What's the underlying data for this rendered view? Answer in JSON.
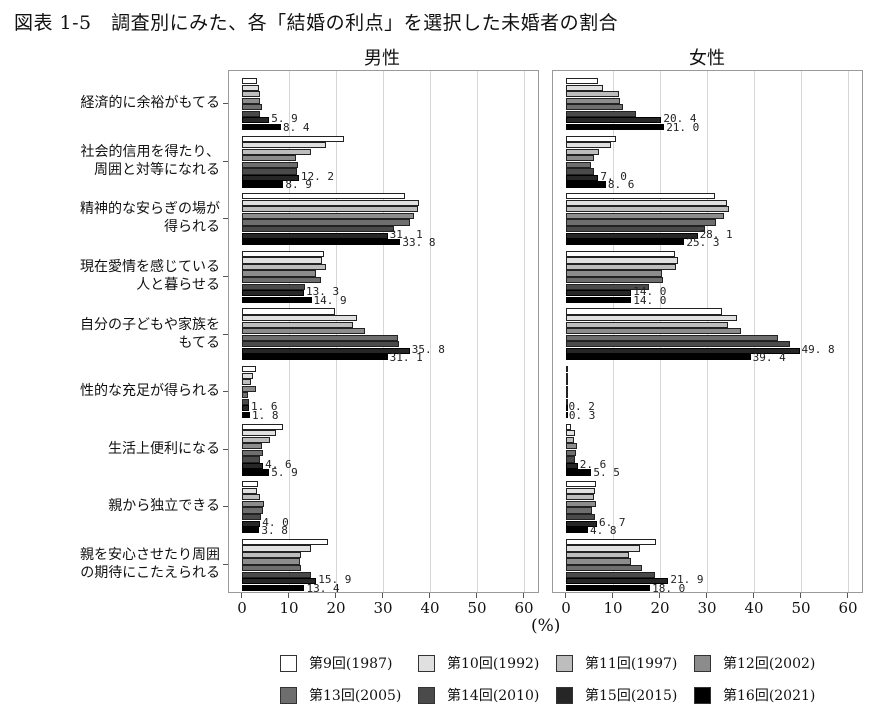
{
  "title": "図表 1-5　調査別にみた、各「結婚の利点」を選択した未婚者の割合",
  "panels": [
    {
      "label": "男性"
    },
    {
      "label": "女性"
    }
  ],
  "x_axis": {
    "unit_label": "(%)",
    "ticks": [
      "0",
      "10",
      "20",
      "30",
      "40",
      "50",
      "60"
    ]
  },
  "legend": [
    {
      "label": "第9回(1987)",
      "color": "#ffffff"
    },
    {
      "label": "第10回(1992)",
      "color": "#e0e0e0"
    },
    {
      "label": "第11回(1997)",
      "color": "#bdbdbd"
    },
    {
      "label": "第12回(2002)",
      "color": "#8c8c8c"
    },
    {
      "label": "第13回(2005)",
      "color": "#6e6e6e"
    },
    {
      "label": "第14回(2010)",
      "color": "#4a4a4a"
    },
    {
      "label": "第15回(2015)",
      "color": "#262626"
    },
    {
      "label": "第16回(2021)",
      "color": "#000000"
    }
  ],
  "categories": [
    {
      "line1": "経済的に余裕がもてる",
      "line2": ""
    },
    {
      "line1": "社会的信用を得たり、",
      "line2": "周囲と対等になれる"
    },
    {
      "line1": "精神的な安らぎの場が",
      "line2": "得られる"
    },
    {
      "line1": "現在愛情を感じている",
      "line2": "人と暮らせる"
    },
    {
      "line1": "自分の子どもや家族を",
      "line2": "もてる"
    },
    {
      "line1": "性的な充足が得られる",
      "line2": ""
    },
    {
      "line1": "生活上便利になる",
      "line2": ""
    },
    {
      "line1": "親から独立できる",
      "line2": ""
    },
    {
      "line1": "親を安心させたり周囲",
      "line2": "の期待にこたえられる"
    }
  ],
  "chart_data": [
    {
      "type": "bar",
      "orientation": "horizontal",
      "title": "男性",
      "xlabel": "(%)",
      "xlim": [
        0,
        60
      ],
      "grid": true,
      "legend_position": "bottom",
      "categories": [
        "経済的に余裕がもてる",
        "社会的信用を得たり、周囲と対等になれる",
        "精神的な安らぎの場が得られる",
        "現在愛情を感じている人と暮らせる",
        "自分の子どもや家族をもてる",
        "性的な充足が得られる",
        "生活上便利になる",
        "親から独立できる",
        "親を安心させたり周囲の期待にこたえられる"
      ],
      "series": [
        {
          "name": "第9回(1987)",
          "values": [
            3.2,
            21.9,
            34.7,
            17.5,
            19.8,
            3.1,
            8.9,
            3.5,
            18.4
          ]
        },
        {
          "name": "第10回(1992)",
          "values": [
            3.7,
            17.9,
            37.7,
            17.2,
            24.6,
            2.5,
            7.3,
            3.3,
            14.7
          ]
        },
        {
          "name": "第11回(1997)",
          "values": [
            4.0,
            14.7,
            37.5,
            18.0,
            23.8,
            2.0,
            6.1,
            4.0,
            12.6
          ]
        },
        {
          "name": "第12回(2002)",
          "values": [
            3.9,
            11.7,
            36.6,
            15.8,
            26.2,
            3.0,
            4.4,
            4.8,
            12.4
          ]
        },
        {
          "name": "第13回(2005)",
          "values": [
            4.3,
            12.1,
            35.9,
            17.0,
            33.4,
            1.3,
            4.6,
            4.6,
            12.7
          ]
        },
        {
          "name": "第14回(2010)",
          "values": [
            4.0,
            11.9,
            32.4,
            13.6,
            33.6,
            1.5,
            4.0,
            4.2,
            14.7
          ]
        },
        {
          "name": "第15回(2015)",
          "values": [
            5.9,
            12.2,
            31.1,
            13.3,
            35.8,
            1.6,
            4.6,
            4.0,
            15.9
          ]
        },
        {
          "name": "第16回(2021)",
          "values": [
            8.4,
            8.9,
            33.8,
            14.9,
            31.1,
            1.8,
            5.9,
            3.8,
            13.4
          ]
        }
      ],
      "data_labels": {
        "第15回(2015)": [
          "5.9",
          "12.2",
          "31.1",
          "13.3",
          "35.8",
          "1.6",
          "4.6",
          "4.0",
          "15.9"
        ],
        "第16回(2021)": [
          "8.4",
          "8.9",
          "33.8",
          "14.9",
          "31.1",
          "1.8",
          "5.9",
          "3.8",
          "13.4"
        ]
      }
    },
    {
      "type": "bar",
      "orientation": "horizontal",
      "title": "女性",
      "xlabel": "(%)",
      "xlim": [
        0,
        60
      ],
      "grid": true,
      "legend_position": "bottom",
      "categories": [
        "経済的に余裕がもてる",
        "社会的信用を得たり、周囲と対等になれる",
        "精神的な安らぎの場が得られる",
        "現在愛情を感じている人と暮らせる",
        "自分の子どもや家族をもてる",
        "性的な充足が得られる",
        "生活上便利になる",
        "親から独立できる",
        "親を安心させたり周囲の期待にこたえられる"
      ],
      "series": [
        {
          "name": "第9回(1987)",
          "values": [
            7.0,
            10.8,
            31.9,
            23.3,
            33.2,
            0.6,
            1.1,
            6.5,
            19.2
          ]
        },
        {
          "name": "第10回(1992)",
          "values": [
            8.0,
            9.7,
            34.3,
            23.9,
            36.4,
            0.5,
            2.1,
            6.3,
            15.8
          ]
        },
        {
          "name": "第11回(1997)",
          "values": [
            11.3,
            7.2,
            34.7,
            23.6,
            34.6,
            0.4,
            1.8,
            6.1,
            13.6
          ]
        },
        {
          "name": "第12回(2002)",
          "values": [
            11.6,
            6.1,
            33.7,
            20.6,
            37.4,
            0.4,
            2.4,
            6.4,
            13.9
          ]
        },
        {
          "name": "第13回(2005)",
          "values": [
            12.3,
            5.5,
            32.0,
            20.8,
            45.3,
            0.4,
            2.2,
            5.7,
            16.3
          ]
        },
        {
          "name": "第14回(2010)",
          "values": [
            15.0,
            6.1,
            29.7,
            17.7,
            47.7,
            0.3,
            2.0,
            6.2,
            19.1
          ]
        },
        {
          "name": "第15回(2015)",
          "values": [
            20.4,
            7.0,
            28.1,
            14.0,
            49.8,
            0.2,
            2.6,
            6.7,
            21.9
          ]
        },
        {
          "name": "第16回(2021)",
          "values": [
            21.0,
            8.6,
            25.3,
            14.0,
            39.4,
            0.3,
            5.5,
            4.8,
            18.0
          ]
        }
      ],
      "data_labels": {
        "第15回(2015)": [
          "20.4",
          "7.0",
          "28.1",
          "14.0",
          "49.8",
          "0.2",
          "2.6",
          "6.7",
          "21.9"
        ],
        "第16回(2021)": [
          "21.0",
          "8.6",
          "25.3",
          "14.0",
          "39.4",
          "0.3",
          "5.5",
          "4.8",
          "18.0"
        ]
      }
    }
  ]
}
